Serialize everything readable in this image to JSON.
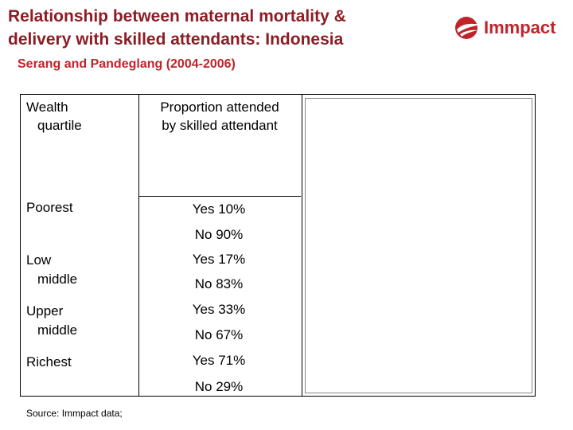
{
  "title": {
    "line1": "Relationship between maternal mortality &",
    "line2": "delivery with skilled attendants: Indonesia"
  },
  "subtitle": "Serang and Pandeglang (2004-2006)",
  "logo": {
    "text": "Immpact",
    "color": "#c0242b"
  },
  "table": {
    "header_wealth_line1": "Wealth",
    "header_wealth_line2": "quartile",
    "header_prop_line1": "Proportion attended",
    "header_prop_line2": "by skilled attendant",
    "rows": [
      {
        "quartile_line1": "Poorest",
        "quartile_line2": "",
        "yes": "Yes 10%",
        "no": "No 90%"
      },
      {
        "quartile_line1": "Low",
        "quartile_line2": "middle",
        "yes": "Yes 17%",
        "no": "No 83%"
      },
      {
        "quartile_line1": "Upper",
        "quartile_line2": "middle",
        "yes": "Yes 33%",
        "no": "No 67%"
      },
      {
        "quartile_line1": "Richest",
        "quartile_line2": "",
        "yes": "Yes 71%",
        "no": "No 29%"
      }
    ]
  },
  "source": "Source: Immpact data;",
  "colors": {
    "title": "#8c1d24",
    "accent": "#c0242b"
  }
}
